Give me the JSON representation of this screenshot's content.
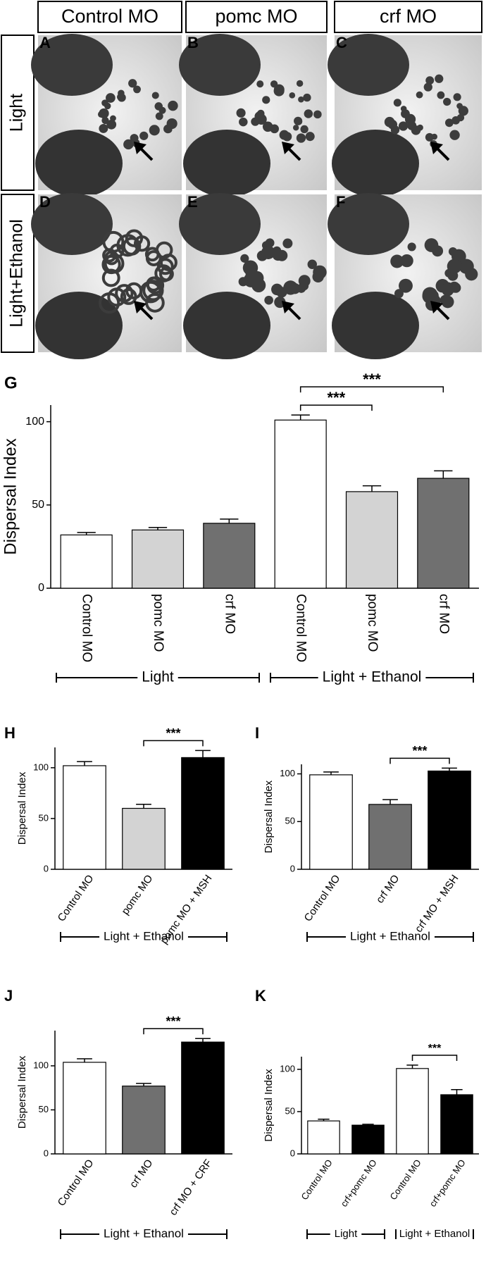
{
  "header": {
    "columns": [
      "Control MO",
      "pomc MO",
      "crf MO"
    ],
    "rows": [
      "Light",
      "Light+Ethanol"
    ],
    "panels": [
      "A",
      "B",
      "C",
      "D",
      "E",
      "F"
    ]
  },
  "chart_data": [
    {
      "type": "bar",
      "panel": "G",
      "ylabel": "Dispersal Index",
      "categories": [
        "Control MO",
        "pomc MO",
        "crf MO",
        "Control MO",
        "pomc MO",
        "crf MO"
      ],
      "values": [
        32,
        35,
        39,
        101,
        58,
        66
      ],
      "errors": [
        1.5,
        1.5,
        2.5,
        3,
        3.5,
        4.5
      ],
      "colors": [
        "#ffffff",
        "#d3d3d3",
        "#707070",
        "#ffffff",
        "#d3d3d3",
        "#707070"
      ],
      "ylim": [
        0,
        110
      ],
      "yticks": [
        0,
        50,
        100
      ],
      "groups": [
        "Light",
        "Light + Ethanol"
      ],
      "significance": [
        "***",
        "***"
      ]
    },
    {
      "type": "bar",
      "panel": "H",
      "ylabel": "Dispersal Index",
      "categories": [
        "Control MO",
        "pomc MO",
        "pomc MO + MSH"
      ],
      "values": [
        102,
        60,
        110
      ],
      "errors": [
        4,
        4,
        7
      ],
      "colors": [
        "#ffffff",
        "#d3d3d3",
        "#000000"
      ],
      "ylim": [
        0,
        120
      ],
      "yticks": [
        0,
        50,
        100
      ],
      "groups": [
        "Light + Ethanol"
      ],
      "significance": [
        "***"
      ]
    },
    {
      "type": "bar",
      "panel": "I",
      "ylabel": "Dispersal Index",
      "categories": [
        "Control MO",
        "crf MO",
        "crf MO + MSH"
      ],
      "values": [
        99,
        68,
        103
      ],
      "errors": [
        3,
        5,
        3
      ],
      "colors": [
        "#ffffff",
        "#707070",
        "#000000"
      ],
      "ylim": [
        0,
        110
      ],
      "yticks": [
        0,
        50,
        100
      ],
      "groups": [
        "Light + Ethanol"
      ],
      "significance": [
        "***"
      ]
    },
    {
      "type": "bar",
      "panel": "J",
      "ylabel": "Dispersal Index",
      "categories": [
        "Control MO",
        "crf MO",
        "crf MO + CRF"
      ],
      "values": [
        104,
        77,
        127
      ],
      "errors": [
        4,
        3,
        4
      ],
      "colors": [
        "#ffffff",
        "#707070",
        "#000000"
      ],
      "ylim": [
        0,
        140
      ],
      "yticks": [
        0,
        50,
        100
      ],
      "groups": [
        "Light + Ethanol"
      ],
      "significance": [
        "***"
      ]
    },
    {
      "type": "bar",
      "panel": "K",
      "ylabel": "Dispersal Index",
      "categories": [
        "Control MO",
        "crf+pomc MO",
        "Control MO",
        "crf+pomc MO"
      ],
      "values": [
        39,
        34,
        101,
        70
      ],
      "errors": [
        2,
        1,
        4,
        6
      ],
      "colors": [
        "#ffffff",
        "#000000",
        "#ffffff",
        "#000000"
      ],
      "ylim": [
        0,
        115
      ],
      "yticks": [
        0,
        50,
        100
      ],
      "groups": [
        "Light",
        "Light + Ethanol"
      ],
      "significance": [
        "***"
      ]
    }
  ]
}
